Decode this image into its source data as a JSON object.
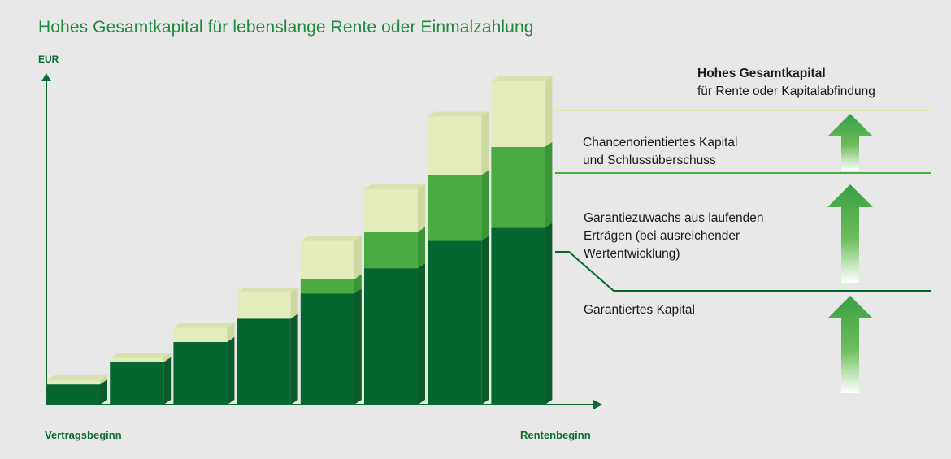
{
  "title": "Hohes Gesamtkapital für lebenslange Rente oder Einmalzahlung",
  "y_unit": "EUR",
  "x_start_label": "Vertragsbeginn",
  "x_end_label": "Rentenbeginn",
  "labels": {
    "top_line1": "Hohes Gesamtkapital",
    "top_line2": "für Rente oder Kapitalabfindung",
    "chance_line1": "Chancenorientiertes Kapital",
    "chance_line2": "und Schlussüberschuss",
    "garantiezuwachs_line1": "Garantiezuwachs aus laufenden",
    "garantiezuwachs_line2": "Erträgen (bei ausreichender",
    "garantiezuwachs_line3": "Wertentwicklung)",
    "garantiert": "Garantiertes Kapital"
  },
  "colors": {
    "dark_green": "#05672f",
    "mid_green": "#4aab42",
    "light_green": "#e3ecba",
    "title_green": "#1e8a3c",
    "background": "#e8e8e8"
  },
  "chart_data": {
    "type": "bar",
    "stacked": true,
    "categories": [
      "1",
      "2",
      "3",
      "4",
      "5",
      "6",
      "7",
      "8"
    ],
    "series": [
      {
        "name": "Garantiertes Kapital",
        "values": [
          20,
          42,
          62,
          85,
          110,
          135,
          162,
          175
        ]
      },
      {
        "name": "Garantiezuwachs aus laufenden Erträgen",
        "values": [
          0,
          0,
          0,
          0,
          14,
          36,
          65,
          80
        ]
      },
      {
        "name": "Chancenorientiertes Kapital und Schlussüberschuss",
        "values": [
          4,
          4,
          14,
          26,
          38,
          42,
          58,
          65
        ]
      }
    ],
    "ylim": [
      0,
      320
    ],
    "grid": false,
    "legend": "right"
  }
}
